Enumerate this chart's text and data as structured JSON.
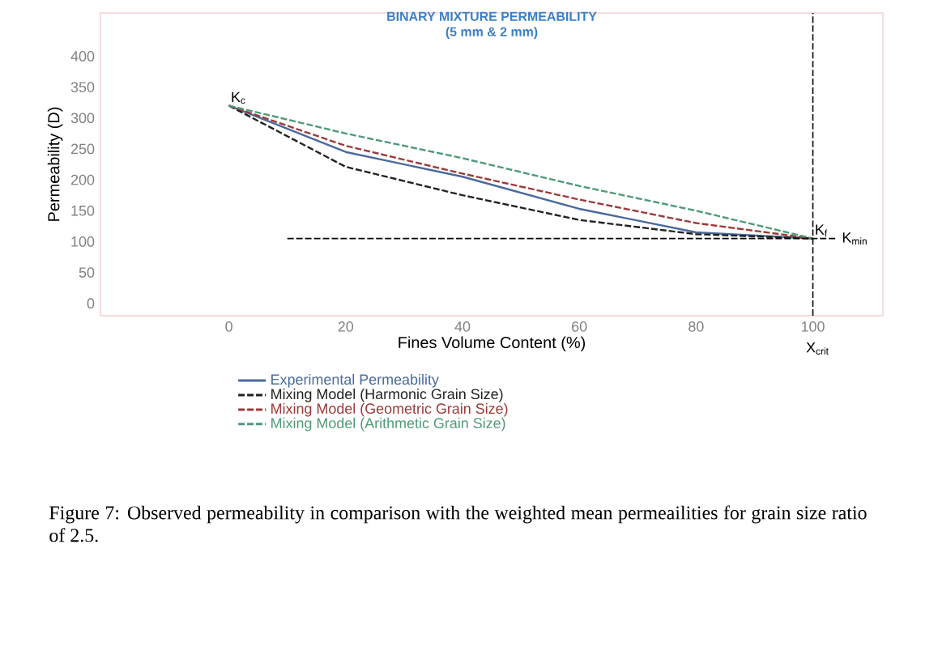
{
  "chart_data": {
    "type": "line",
    "title": "BINARY MIXTURE PERMEABILITY",
    "subtitle": "(5 mm & 2 mm)",
    "xlabel": "Fines Volume Content (%)",
    "ylabel": "Permeability (D)",
    "x": [
      0,
      20,
      40,
      60,
      80,
      100
    ],
    "series": [
      {
        "name": "Experimental Permeability",
        "color": "#4a6a9c",
        "line_style": "solid",
        "values": [
          320,
          245,
          205,
          153,
          115,
          105
        ]
      },
      {
        "name": "Mixing Model (Harmonic Grain Size)",
        "color": "#222222",
        "line_style": "dashed",
        "values": [
          320,
          221,
          175,
          135,
          112,
          105
        ]
      },
      {
        "name": "Mixing Model (Geometric Grain Size)",
        "color": "#9c3a3a",
        "line_style": "dashed",
        "values": [
          320,
          255,
          210,
          168,
          130,
          105
        ]
      },
      {
        "name": "Mixing Model (Arithmetic Grain Size)",
        "color": "#4f9a78",
        "line_style": "dashed",
        "values": [
          320,
          275,
          235,
          190,
          150,
          105
        ]
      }
    ],
    "xlim": [
      -22,
      112
    ],
    "ylim": [
      -20,
      470
    ],
    "xticks": [
      0,
      20,
      40,
      60,
      80,
      100
    ],
    "yticks": [
      0,
      50,
      100,
      150,
      200,
      250,
      300,
      350,
      400
    ],
    "ref_lines": [
      {
        "axis": "y",
        "value": 105,
        "label": "K$_{min}$",
        "line_style": "dashed"
      },
      {
        "axis": "x",
        "value": 100,
        "label": "X$_{crit}$",
        "line_style": "dashed"
      }
    ],
    "annotations": [
      {
        "text": "K$_{c}$",
        "x": 0,
        "y": 320
      },
      {
        "text": "K$_{f}$",
        "x": 100,
        "y": 105
      },
      "Figure 7: Observed permeability in comparison with the weighted mean permeailities for grain size ratio of 2.5."
    ],
    "legend": "bottom",
    "grid": false,
    "marker": "none"
  }
}
